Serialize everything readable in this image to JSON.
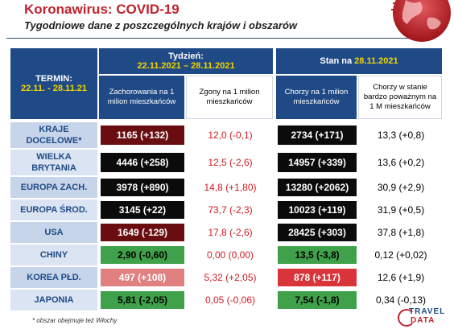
{
  "header": {
    "title": "Koronawirus: COVID-19",
    "subtitle": "Tygodniowe dane z poszczególnych krajów i obszarów"
  },
  "table": {
    "termin_label": "TERMIN:",
    "termin_dates": "22.11. - 28.11.21",
    "week_label": "Tydzień:",
    "week_dates": "22.11.2021 – 28.11.2021",
    "stan_label": "Stan na",
    "stan_date": "28.11.2021",
    "columns": [
      "Zachorowania na 1 milion mieszkańców",
      "Zgony na 1 milion mieszkańców",
      "Chorzy na 1 milion mieszkańców",
      "Chorzy w stanie bardzo poważnym na 1 M mieszkańców"
    ],
    "rows": [
      {
        "label": "KRAJE DOCELOWE*",
        "cases": "1165 (+132)",
        "deaths": "12,0 (-0,1)",
        "sick": "2734 (+171)",
        "severe": "13,3 (+0,8)"
      },
      {
        "label": "WIELKA BRYTANIA",
        "cases": "4446 (+258)",
        "deaths": "12,5 (-2,6)",
        "sick": "14957 (+339)",
        "severe": "13,6 (+0,2)"
      },
      {
        "label": "EUROPA ZACH.",
        "cases": "3978 (+890)",
        "deaths": "14,8 (+1,80)",
        "sick": "13280 (+2062)",
        "severe": "30,9 (+2,9)"
      },
      {
        "label": "EUROPA ŚROD.",
        "cases": "3145 (+22)",
        "deaths": "73,7 (-2,3)",
        "sick": "10023 (+119)",
        "severe": "31,9 (+0,5)"
      },
      {
        "label": "USA",
        "cases": "1649 (-129)",
        "deaths": "17,8 (-2,6)",
        "sick": "28425 (+303)",
        "severe": "37,8 (+1,8)"
      },
      {
        "label": "CHINY",
        "cases": "2,90 (-0,60)",
        "deaths": "0,00 (0,00)",
        "sick": "13,5 (-3,8)",
        "severe": "0,12 (+0,02)"
      },
      {
        "label": "KOREA PŁD.",
        "cases": "497 (+108)",
        "deaths": "5,32 (+2,05)",
        "sick": "878 (+117)",
        "severe": "12,6 (+1,9)"
      },
      {
        "label": "JAPONIA",
        "cases": "5,81 (-2,05)",
        "deaths": "0,05 (-0,06)",
        "sick": "7,54 (-1,8)",
        "severe": "0,34 (-0,13)"
      }
    ]
  },
  "footnote": "* obszar obejmuje też Włochy",
  "logo": {
    "top": "TRAVEL",
    "bottom": "DATA"
  },
  "colors": {
    "title_red": "#c0232c",
    "header_blue": "#1f4a86",
    "date_yellow": "#f2d400",
    "cell_black": "#0b0b0b",
    "cell_maroon": "#6a0d10",
    "cell_red": "#d9343a",
    "cell_pink": "#e08080",
    "cell_green": "#3fa24a"
  }
}
